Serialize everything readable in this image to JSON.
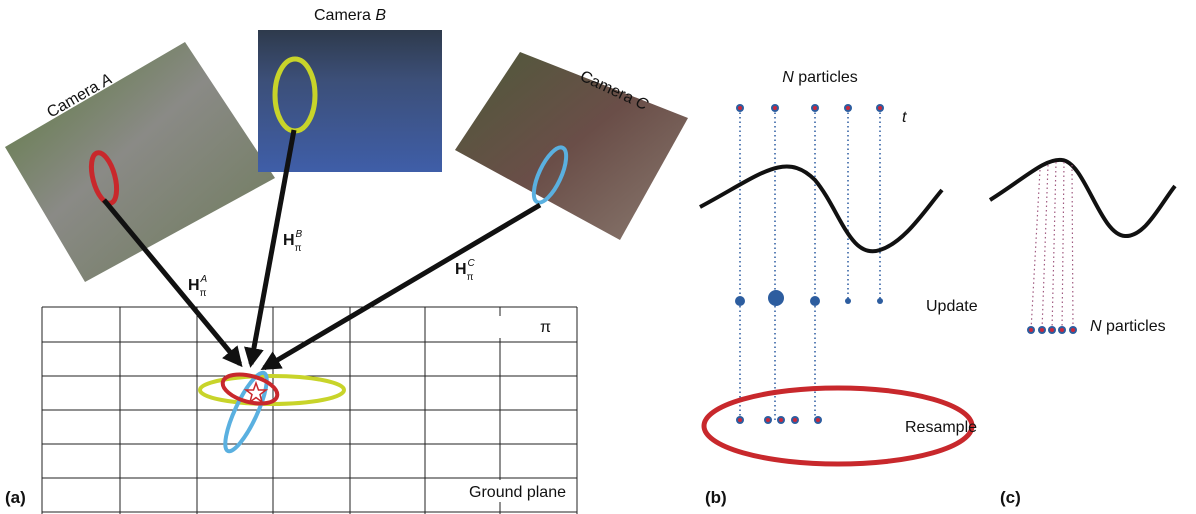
{
  "panel_a": {
    "tag": "(a)",
    "cameras": [
      {
        "label": "Camera",
        "id": "A"
      },
      {
        "label": "Camera",
        "id": "B"
      },
      {
        "label": "Camera",
        "id": "C"
      }
    ],
    "homographies": [
      {
        "symbol": "H",
        "subscript": "π",
        "superscript": "A"
      },
      {
        "symbol": "H",
        "subscript": "π",
        "superscript": "B"
      },
      {
        "symbol": "H",
        "subscript": "π",
        "superscript": "C"
      }
    ],
    "plane_symbol": "π",
    "plane_label": "Ground plane"
  },
  "panel_b": {
    "tag": "(b)",
    "count_symbol": "N",
    "count_label": "particles",
    "time_symbol": "t",
    "update": "Update",
    "resample": "Resample"
  },
  "panel_c": {
    "tag": "(c)",
    "count_symbol": "N",
    "count_label": "particles"
  }
}
